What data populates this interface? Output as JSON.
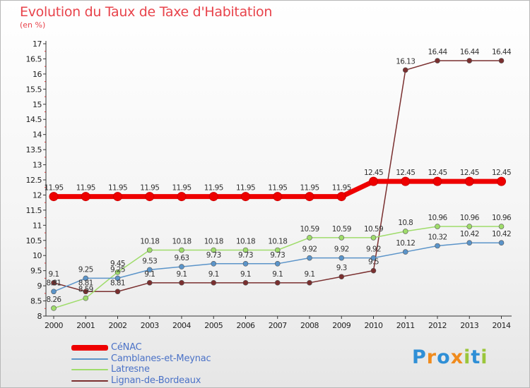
{
  "title": "Evolution du Taux de Taxe d'Habitation",
  "subtitle": "(en %)",
  "brand": {
    "letters": [
      {
        "ch": "P",
        "color": "#2f8fd6"
      },
      {
        "ch": "r",
        "color": "#f08b1d"
      },
      {
        "ch": "o",
        "color": "#2f8fd6"
      },
      {
        "ch": "x",
        "color": "#f08b1d"
      },
      {
        "ch": "i",
        "color": "#9bc63b"
      },
      {
        "ch": "t",
        "color": "#2f8fd6"
      },
      {
        "ch": "i",
        "color": "#9bc63b"
      }
    ]
  },
  "chart_data": {
    "type": "line",
    "title": "Evolution du Taux de Taxe d'Habitation",
    "ylabel": "(en %)",
    "xlabel": "",
    "x": [
      "2000",
      "2001",
      "2002",
      "2003",
      "2004",
      "2005",
      "2006",
      "2007",
      "2008",
      "2009",
      "2010",
      "2011",
      "2012",
      "2013",
      "2014"
    ],
    "ylim": [
      8,
      17
    ],
    "yticks": [
      "8",
      "8.5",
      "9",
      "9.5",
      "10",
      "10.5",
      "11",
      "11.5",
      "12",
      "12.5",
      "13",
      "13.5",
      "14",
      "14.5",
      "15",
      "15.5",
      "16",
      "16.5",
      "17"
    ],
    "grid": false,
    "legend_position": "bottom-left",
    "series": [
      {
        "name": "CéNAC",
        "color": "#ee0000",
        "values": [
          11.95,
          11.95,
          11.95,
          11.95,
          11.95,
          11.95,
          11.95,
          11.95,
          11.95,
          11.95,
          12.45,
          12.45,
          12.45,
          12.45,
          12.45
        ]
      },
      {
        "name": "Camblanes-et-Meynac",
        "color": "#5b94c9",
        "values": [
          8.81,
          9.25,
          9.25,
          9.53,
          9.63,
          9.73,
          9.73,
          9.73,
          9.92,
          9.92,
          9.92,
          10.12,
          10.32,
          10.42,
          10.42
        ]
      },
      {
        "name": "Latresne",
        "color": "#9fdc6b",
        "values": [
          8.26,
          8.59,
          9.45,
          10.18,
          10.18,
          10.18,
          10.18,
          10.18,
          10.59,
          10.59,
          10.59,
          10.8,
          10.96,
          10.96,
          10.96
        ]
      },
      {
        "name": "Lignan-de-Bordeaux",
        "color": "#7a2f2f",
        "values": [
          9.1,
          8.81,
          8.81,
          9.1,
          9.1,
          9.1,
          9.1,
          9.1,
          9.1,
          9.3,
          9.5,
          16.13,
          16.44,
          16.44,
          16.44
        ]
      }
    ],
    "data_labels": [
      [
        "11.95",
        "11.95",
        "11.95",
        "11.95",
        "11.95",
        "11.95",
        "11.95",
        "11.95",
        "11.95",
        "11.95",
        "12.45",
        "12.45",
        "12.45",
        "12.45",
        "12.45"
      ],
      [
        "8.81",
        "9.25",
        "9.25",
        "9.53",
        "9.63",
        "9.73",
        "9.73",
        "9.73",
        "9.92",
        "9.92",
        "9.92",
        "10.12",
        "10.32",
        "10.42",
        "10.42"
      ],
      [
        "8.26",
        "8.59",
        "9.45",
        "10.18",
        "10.18",
        "10.18",
        "10.18",
        "10.18",
        "10.59",
        "10.59",
        "10.59",
        "10.8",
        "10.96",
        "10.96",
        "10.96"
      ],
      [
        "9.1",
        "8.81",
        "8.81",
        "9.1",
        "9.1",
        "9.1",
        "9.1",
        "9.1",
        "9.1",
        "9.3",
        "9.5",
        "16.13",
        "16.44",
        "16.44",
        "16.44"
      ]
    ]
  }
}
